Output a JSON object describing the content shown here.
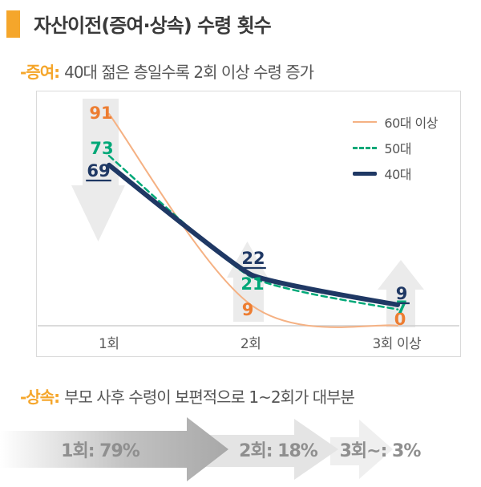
{
  "header": {
    "title": "자산이전(증여·상속) 수령 횟수"
  },
  "sections": {
    "gift": {
      "label": "-증여:",
      "text": "40대 젊은 층일수록 2회 이상 수령 증가"
    },
    "inheritance": {
      "label": "-상속:",
      "text": "부모 사후 수령이 보편적으로 1~2회가 대부분"
    }
  },
  "chart_data": {
    "type": "line",
    "categories": [
      "1회",
      "2회",
      "3회 이상"
    ],
    "series": [
      {
        "name": "60대 이상",
        "values": [
          91,
          9,
          0
        ],
        "color": "#F5B183",
        "label_color": "#ED7D31",
        "style": "solid-thin",
        "values_underlined": false
      },
      {
        "name": "50대",
        "values": [
          73,
          21,
          7
        ],
        "color": "#00A878",
        "label_color": "#00A878",
        "style": "dashed",
        "values_underlined": false
      },
      {
        "name": "40대",
        "values": [
          69,
          22,
          9
        ],
        "color": "#1F3864",
        "label_color": "#1F3864",
        "style": "solid-thick",
        "values_underlined": true
      }
    ],
    "ylim": [
      0,
      100
    ],
    "grid": false,
    "legend_position": "top-right",
    "xlabel": "",
    "ylabel": "",
    "annotations": [
      {
        "at": "1회",
        "direction": "down"
      },
      {
        "at": "2회",
        "direction": "up"
      },
      {
        "at": "3회 이상",
        "direction": "up"
      }
    ]
  },
  "banner": {
    "items": [
      {
        "label": "1회: 79%"
      },
      {
        "label": "2회: 18%"
      },
      {
        "label": "3회~: 3%"
      }
    ]
  },
  "colors": {
    "accent_orange": "#F5A62B",
    "title_text": "#3A3A3A",
    "body_text": "#555555",
    "axis_text": "#595959",
    "chart_border": "#DADADA",
    "arrow_fill": "#E9E9E9",
    "axis_line": "#CFCFCF",
    "banner_text": "#8F8F8F",
    "banner_arrow_dark": "#ABABAB",
    "banner_arrow_mid": "#E4E4E4",
    "banner_arrow_light": "#EFEFEF"
  }
}
